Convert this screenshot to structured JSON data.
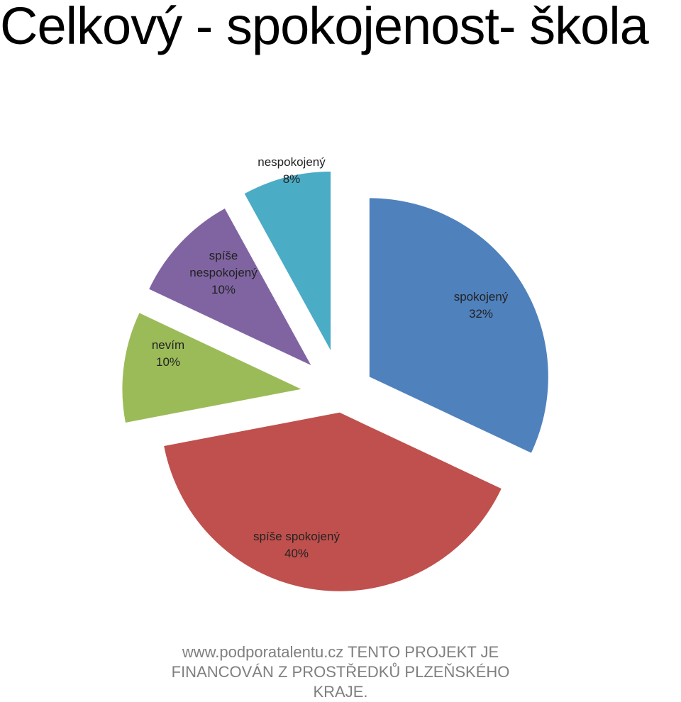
{
  "slide": {
    "title": "Celkový - spokojenost- škola"
  },
  "chart_data": {
    "type": "pie",
    "title": "",
    "slices": [
      {
        "label": "spokojený",
        "value": 32,
        "value_label": "32%",
        "color": "#4f81bd",
        "label_lines": [
          "spokojený",
          "32%"
        ]
      },
      {
        "label": "spíše spokojený",
        "value": 40,
        "value_label": "40%",
        "color": "#c0504d",
        "label_lines": [
          "spíše spokojený",
          "40%"
        ]
      },
      {
        "label": "nevím",
        "value": 10,
        "value_label": "10%",
        "color": "#9bbb59",
        "label_lines": [
          "nevím",
          "10%"
        ]
      },
      {
        "label": "spíše nespokojený",
        "value": 10,
        "value_label": "10%",
        "color": "#8064a2",
        "label_lines": [
          "spíše",
          "nespokojený",
          "10%"
        ]
      },
      {
        "label": "nespokojený",
        "value": 8,
        "value_label": "8%",
        "color": "#4bacc6",
        "label_lines": [
          "nespokojený",
          "8%"
        ]
      }
    ],
    "legend": "none",
    "exploded": true
  },
  "footer": {
    "url": "www.podporatalentu.cz",
    "text": "TENTO PROJEKT JE FINANCOVÁN Z PROSTŘEDKŮ PLZEŇSKÉHO KRAJE."
  }
}
